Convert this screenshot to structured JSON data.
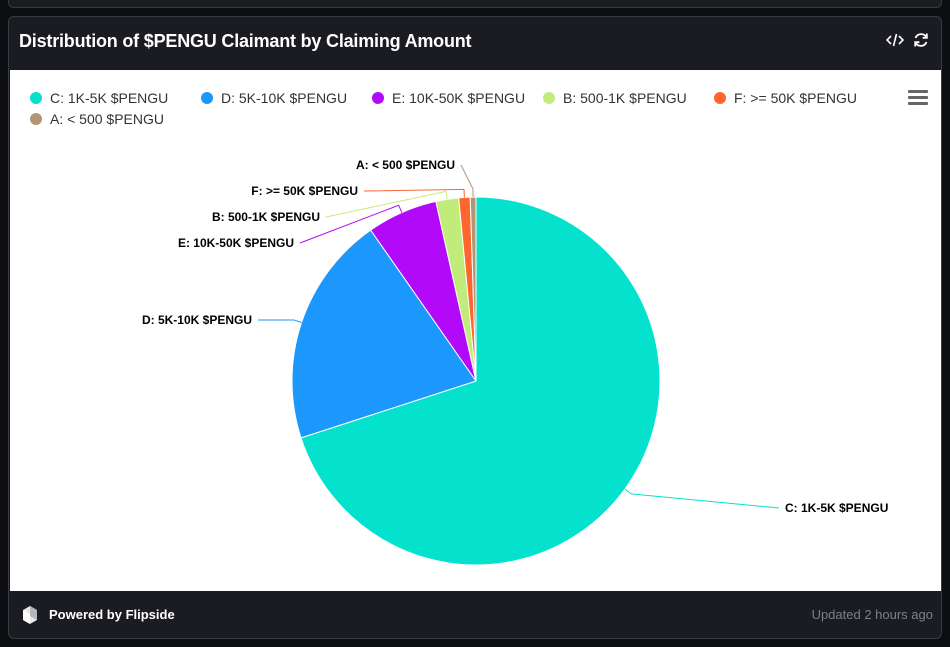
{
  "card": {
    "title": "Distribution of $PENGU Claimant by Claiming Amount",
    "code_icon": "code-icon",
    "refresh_icon": "refresh-icon"
  },
  "footer": {
    "powered_by": "Powered by Flipside",
    "updated": "Updated 2 hours ago",
    "logo_icon": "flipside-logo-icon"
  },
  "chart_data": {
    "type": "pie",
    "title": "",
    "slices": [
      {
        "label": "C: 1K-5K $PENGU",
        "value": 70.0,
        "color": "#04e2ce"
      },
      {
        "label": "D: 5K-10K $PENGU",
        "value": 20.3,
        "color": "#1c97fc"
      },
      {
        "label": "E: 10K-50K $PENGU",
        "value": 6.2,
        "color": "#b309f9"
      },
      {
        "label": "B: 500-1K $PENGU",
        "value": 2.0,
        "color": "#c2ec7a"
      },
      {
        "label": "F: >= 50K $PENGU",
        "value": 1.0,
        "color": "#fe6630"
      },
      {
        "label": "A: < 500 $PENGU",
        "value": 0.5,
        "color": "#b29672"
      }
    ],
    "legend_order": [
      0,
      1,
      2,
      3,
      4,
      5
    ],
    "legend_position": "top-left",
    "menu_icon": "hamburger-menu-icon"
  }
}
